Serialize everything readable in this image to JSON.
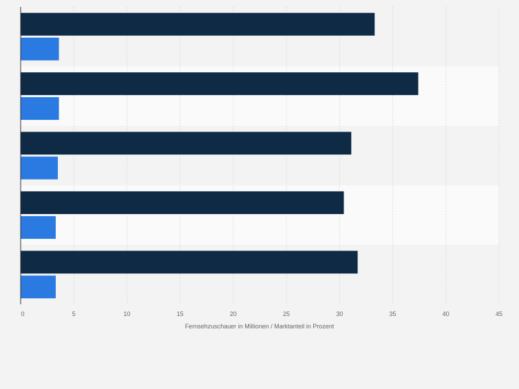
{
  "chart_data": {
    "type": "bar",
    "orientation": "horizontal",
    "categories": [
      "",
      "",
      "",
      "",
      ""
    ],
    "series": [
      {
        "values": [
          33.3,
          37.4,
          31.1,
          30.4,
          31.7
        ],
        "color": "#0f2a45"
      },
      {
        "values": [
          3.6,
          3.6,
          3.5,
          3.3,
          3.3
        ],
        "color": "#2a7ae2"
      }
    ],
    "xlabel": "Fernsehzuschauer in Millionen / Marktanteil in Prozent",
    "xlim": [
      0,
      45
    ],
    "xticks": [
      0,
      5,
      10,
      15,
      20,
      25,
      30,
      35,
      40,
      45
    ],
    "grid": true,
    "band_colors": [
      "#f3f3f3",
      "#fafafa"
    ]
  }
}
